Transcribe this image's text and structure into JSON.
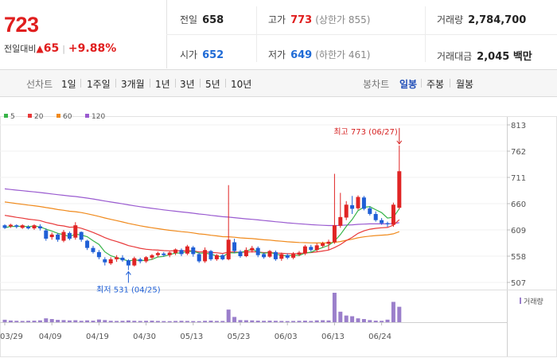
{
  "summary": {
    "current_price": "723",
    "change_label": "전일대비",
    "change_arrow": "▲",
    "change_value": "65",
    "change_rate": "+9.88%"
  },
  "stats": {
    "prev_close_label": "전일",
    "prev_close": "658",
    "high_label": "고가",
    "high": "773",
    "upper_limit": "(상한가 855)",
    "volume_label": "거래량",
    "volume": "2,784,700",
    "open_label": "시가",
    "open": "652",
    "low_label": "저가",
    "low": "649",
    "lower_limit": "(하한가 461)",
    "trade_value_label": "거래대금",
    "trade_value": "2,045 백만"
  },
  "toolbar": {
    "line_chart_label": "선차트",
    "line_periods": [
      "1일",
      "1주일",
      "3개월",
      "1년",
      "3년",
      "5년",
      "10년"
    ],
    "candle_chart_label": "봉차트",
    "candle_periods": [
      "일봉",
      "주봉",
      "월봉"
    ],
    "active_candle_period": "일봉"
  },
  "colors": {
    "up": "#e02424",
    "down": "#1f5fd6",
    "ma5": "#38b449",
    "ma20": "#e8393a",
    "ma60": "#f08a1c",
    "ma120": "#9a5bd0",
    "volume": "#9b7fcb"
  },
  "chart_data": {
    "type": "candlestick",
    "legend": [
      {
        "name": "5",
        "color": "#38b449"
      },
      {
        "name": "20",
        "color": "#e8393a"
      },
      {
        "name": "60",
        "color": "#f08a1c"
      },
      {
        "name": "120",
        "color": "#9a5bd0"
      }
    ],
    "y_ticks": [
      813,
      762,
      711,
      660,
      609,
      558,
      507
    ],
    "ylim": [
      507,
      813
    ],
    "x_ticks": [
      {
        "label": "03/29",
        "index": 0
      },
      {
        "label": "04/09",
        "index": 8
      },
      {
        "label": "04/19",
        "index": 16
      },
      {
        "label": "04/30",
        "index": 24
      },
      {
        "label": "05/13",
        "index": 32
      },
      {
        "label": "05/23",
        "index": 40
      },
      {
        "label": "06/03",
        "index": 48
      },
      {
        "label": "06/13",
        "index": 56
      },
      {
        "label": "06/24",
        "index": 64
      }
    ],
    "high_annotation": {
      "text": "최고 773 (06/27)",
      "value": 773,
      "index": 67
    },
    "low_annotation": {
      "text": "최저 531 (04/25)",
      "value": 531,
      "index": 21
    },
    "volume_label": "거래량",
    "candles": [
      [
        618,
        613,
        620,
        611
      ],
      [
        616,
        619,
        621,
        613
      ],
      [
        618,
        615,
        620,
        612
      ],
      [
        613,
        618,
        620,
        611
      ],
      [
        615,
        612,
        618,
        610
      ],
      [
        612,
        618,
        620,
        609
      ],
      [
        616,
        612,
        620,
        608
      ],
      [
        608,
        592,
        612,
        588
      ],
      [
        595,
        600,
        604,
        590
      ],
      [
        600,
        590,
        603,
        586
      ],
      [
        588,
        605,
        609,
        585
      ],
      [
        603,
        592,
        606,
        589
      ],
      [
        594,
        618,
        624,
        590
      ],
      [
        605,
        590,
        606,
        586
      ],
      [
        588,
        574,
        590,
        570
      ],
      [
        574,
        566,
        578,
        563
      ],
      [
        566,
        556,
        570,
        552
      ],
      [
        552,
        546,
        556,
        540
      ],
      [
        544,
        552,
        556,
        541
      ],
      [
        552,
        556,
        560,
        547
      ],
      [
        555,
        550,
        560,
        547
      ],
      [
        550,
        540,
        552,
        531
      ],
      [
        540,
        554,
        557,
        538
      ],
      [
        552,
        548,
        555,
        544
      ],
      [
        548,
        556,
        558,
        545
      ],
      [
        555,
        560,
        562,
        551
      ],
      [
        560,
        564,
        567,
        556
      ],
      [
        563,
        560,
        566,
        557
      ],
      [
        560,
        565,
        567,
        556
      ],
      [
        564,
        571,
        573,
        560
      ],
      [
        570,
        562,
        573,
        558
      ],
      [
        563,
        577,
        580,
        560
      ],
      [
        575,
        562,
        578,
        557
      ],
      [
        562,
        548,
        565,
        545
      ],
      [
        548,
        570,
        575,
        545
      ],
      [
        568,
        552,
        570,
        549
      ],
      [
        552,
        560,
        562,
        549
      ],
      [
        560,
        552,
        562,
        550
      ],
      [
        552,
        590,
        696,
        550
      ],
      [
        585,
        568,
        592,
        564
      ],
      [
        567,
        558,
        570,
        555
      ],
      [
        558,
        570,
        575,
        556
      ],
      [
        569,
        574,
        578,
        565
      ],
      [
        574,
        560,
        577,
        556
      ],
      [
        562,
        556,
        565,
        553
      ],
      [
        557,
        568,
        570,
        555
      ],
      [
        566,
        552,
        569,
        549
      ],
      [
        553,
        562,
        565,
        549
      ],
      [
        560,
        555,
        563,
        552
      ],
      [
        555,
        562,
        566,
        552
      ],
      [
        561,
        565,
        568,
        558
      ],
      [
        563,
        577,
        580,
        560
      ],
      [
        576,
        570,
        580,
        567
      ],
      [
        570,
        579,
        583,
        567
      ],
      [
        578,
        583,
        586,
        575
      ],
      [
        582,
        586,
        590,
        570
      ],
      [
        585,
        618,
        718,
        582
      ],
      [
        617,
        634,
        681,
        613
      ],
      [
        633,
        658,
        665,
        628
      ],
      [
        657,
        650,
        675,
        640
      ],
      [
        651,
        673,
        676,
        648
      ],
      [
        672,
        650,
        675,
        647
      ],
      [
        651,
        640,
        655,
        637
      ],
      [
        640,
        628,
        645,
        625
      ],
      [
        628,
        622,
        632,
        619
      ],
      [
        622,
        620,
        625,
        615
      ],
      [
        619,
        658,
        662,
        615
      ],
      [
        652,
        723,
        773,
        649
      ]
    ],
    "volume": [
      35,
      24,
      20,
      18,
      20,
      22,
      26,
      55,
      45,
      33,
      30,
      25,
      28,
      20,
      26,
      22,
      38,
      30,
      20,
      18,
      20,
      25,
      20,
      18,
      20,
      22,
      18,
      16,
      15,
      18,
      20,
      18,
      16,
      15,
      20,
      22,
      18,
      18,
      180,
      75,
      30,
      28,
      26,
      22,
      20,
      22,
      20,
      18,
      16,
      18,
      20,
      22,
      18,
      26,
      28,
      25,
      420,
      150,
      95,
      85,
      55,
      45,
      30,
      22,
      20,
      36,
      290,
      220
    ]
  }
}
